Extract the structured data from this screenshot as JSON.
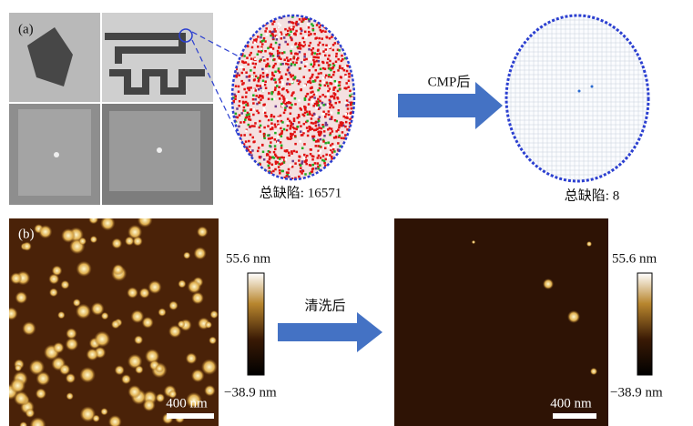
{
  "panel_a": {
    "label": "(a)",
    "arrow_label": "CMP后",
    "before_caption": "总缺陷: 16571",
    "after_caption": "总缺陷: 8"
  },
  "panel_b": {
    "label": "(b)",
    "arrow_label": "清洗后",
    "left_colorbar": {
      "max_label": "55.6 nm",
      "min_label": "−38.9 nm"
    },
    "left_scale_bar": "400 nm",
    "right_colorbar": {
      "max_label": "55.6 nm",
      "min_label": "−38.9 nm"
    },
    "right_scale_bar": "400 nm"
  }
}
